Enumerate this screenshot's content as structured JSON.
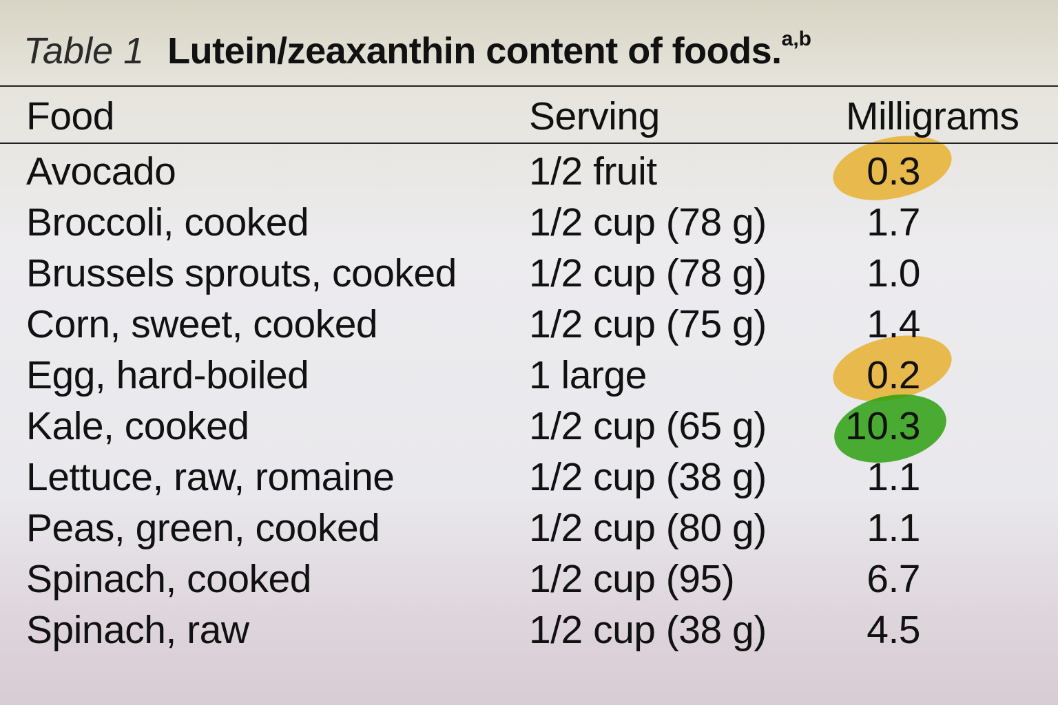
{
  "table_title": {
    "label": "Table 1",
    "text": "Lutein/zeaxanthin content of foods.",
    "footnotes": "a,b"
  },
  "table": {
    "header": [
      "Food",
      "Serving",
      "Milligrams"
    ],
    "rows": [
      [
        "Avocado",
        "1/2 fruit",
        "0.3"
      ],
      [
        "Broccoli, cooked",
        "1/2 cup (78 g)",
        "1.7"
      ],
      [
        "Brussels sprouts, cooked",
        "1/2 cup (78 g)",
        "1.0"
      ],
      [
        "Corn, sweet, cooked",
        "1/2 cup (75 g)",
        "1.4"
      ],
      [
        "Egg, hard-boiled",
        "1 large",
        "0.2"
      ],
      [
        "Kale, cooked",
        "1/2 cup (65 g)",
        "10.3"
      ],
      [
        "Lettuce, raw, romaine",
        "1/2 cup (38 g)",
        "1.1"
      ],
      [
        "Peas, green, cooked",
        "1/2 cup (80 g)",
        "1.1"
      ],
      [
        "Spinach, cooked",
        "1/2 cup (95)",
        "6.7"
      ],
      [
        "Spinach, raw",
        "1/2 cup (38 g)",
        "4.5"
      ]
    ]
  }
}
